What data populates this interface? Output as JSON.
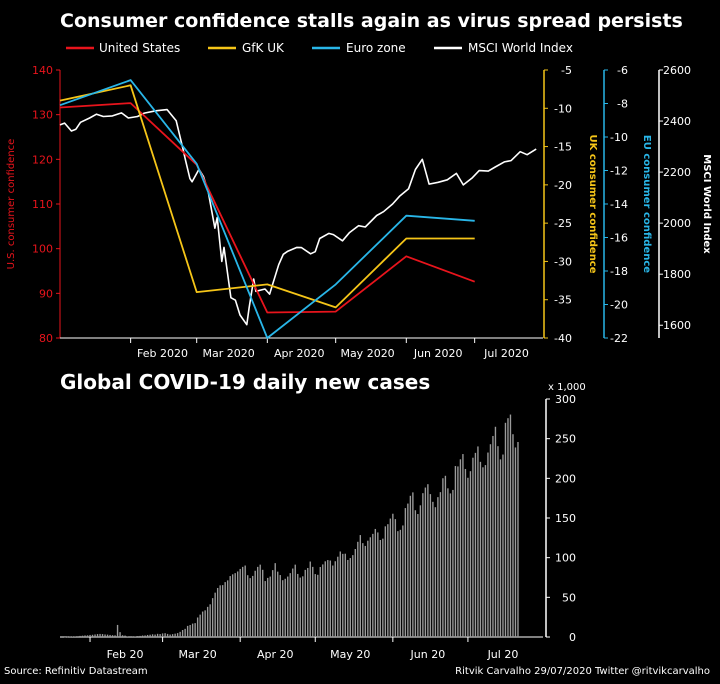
{
  "colors": {
    "us": "#e8141c",
    "uk": "#f5c518",
    "ez": "#29b6e8",
    "msci": "#ffffff",
    "bars": "#9a9a9a",
    "axis": "#ffffff"
  },
  "source_text": "Source: Refinitiv Datastream",
  "credit_text": "Ritvik Carvalho 29/07/2020 Twitter @ritvikcarvalho",
  "chart_data": [
    {
      "type": "line",
      "title": "Consumer confidence stalls again as virus spread persists",
      "x_tick_labels": [
        "Feb 2020",
        "Mar 2020",
        "Apr 2020",
        "May 2020",
        "Jun 2020",
        "Jul 2020"
      ],
      "legend": [
        "United States",
        "GfK UK",
        "Euro zone",
        "MSCI World Index"
      ],
      "legend_placement": "top",
      "axes": {
        "us": {
          "label": "U.S. consumer confidence",
          "range": [
            80,
            140
          ],
          "ticks": [
            "80",
            "90",
            "100",
            "110",
            "120",
            "130",
            "140"
          ],
          "color": "#e8141c"
        },
        "uk": {
          "label": "UK consumer confidence",
          "range": [
            -40,
            -5
          ],
          "ticks": [
            "-40",
            "-35",
            "-30",
            "-25",
            "-20",
            "-15",
            "-10",
            "-5"
          ],
          "color": "#f5c518"
        },
        "ez": {
          "label": "EU consumer confidence",
          "range": [
            -22,
            -6
          ],
          "ticks": [
            "-22",
            "-20",
            "-18",
            "-16",
            "-14",
            "-12",
            "-10",
            "-8",
            "-6"
          ],
          "color": "#29b6e8"
        },
        "msci": {
          "label": "MSCI World Index",
          "range": [
            1550,
            2600
          ],
          "ticks": [
            "1600",
            "1800",
            "2000",
            "2200",
            "2400",
            "2600"
          ],
          "color": "#ffffff"
        }
      },
      "series": [
        {
          "name": "United States",
          "axis": "us",
          "x": [
            "2020-01-01",
            "2020-02-01",
            "2020-03-01",
            "2020-04-01",
            "2020-05-01",
            "2020-06-01",
            "2020-07-01"
          ],
          "y": [
            131.6,
            132.6,
            118.8,
            85.7,
            85.9,
            98.3,
            92.6
          ]
        },
        {
          "name": "GfK UK",
          "axis": "uk",
          "x": [
            "2020-01-01",
            "2020-02-01",
            "2020-03-01",
            "2020-04-01",
            "2020-05-01",
            "2020-06-01",
            "2020-07-01"
          ],
          "y": [
            -9,
            -7,
            -34,
            -33,
            -36,
            -27,
            -27
          ]
        },
        {
          "name": "Euro zone",
          "axis": "ez",
          "x": [
            "2020-01-01",
            "2020-02-01",
            "2020-03-01",
            "2020-04-01",
            "2020-05-01",
            "2020-06-01",
            "2020-07-01"
          ],
          "y": [
            -8.1,
            -6.6,
            -11.6,
            -22.0,
            -18.8,
            -14.7,
            -15.0
          ]
        },
        {
          "name": "MSCI World Index",
          "axis": "msci",
          "x": [
            "2020-01-01",
            "2020-01-03",
            "2020-01-06",
            "2020-01-08",
            "2020-01-10",
            "2020-01-14",
            "2020-01-17",
            "2020-01-20",
            "2020-01-24",
            "2020-01-28",
            "2020-01-31",
            "2020-02-04",
            "2020-02-07",
            "2020-02-12",
            "2020-02-17",
            "2020-02-21",
            "2020-02-24",
            "2020-02-25",
            "2020-02-27",
            "2020-02-28",
            "2020-03-02",
            "2020-03-04",
            "2020-03-06",
            "2020-03-09",
            "2020-03-10",
            "2020-03-12",
            "2020-03-13",
            "2020-03-16",
            "2020-03-18",
            "2020-03-20",
            "2020-03-23",
            "2020-03-24",
            "2020-03-26",
            "2020-03-27",
            "2020-03-31",
            "2020-04-02",
            "2020-04-06",
            "2020-04-08",
            "2020-04-10",
            "2020-04-14",
            "2020-04-16",
            "2020-04-20",
            "2020-04-22",
            "2020-04-24",
            "2020-04-28",
            "2020-04-30",
            "2020-05-04",
            "2020-05-07",
            "2020-05-11",
            "2020-05-14",
            "2020-05-19",
            "2020-05-22",
            "2020-05-26",
            "2020-05-29",
            "2020-06-02",
            "2020-06-05",
            "2020-06-08",
            "2020-06-11",
            "2020-06-15",
            "2020-06-19",
            "2020-06-23",
            "2020-06-26",
            "2020-06-30",
            "2020-07-03",
            "2020-07-07",
            "2020-07-10",
            "2020-07-14",
            "2020-07-17",
            "2020-07-21",
            "2020-07-24",
            "2020-07-28"
          ],
          "y": [
            2385,
            2392,
            2361,
            2368,
            2395,
            2412,
            2427,
            2418,
            2420,
            2432,
            2412,
            2418,
            2431,
            2440,
            2445,
            2401,
            2290,
            2250,
            2175,
            2162,
            2211,
            2182,
            2125,
            1980,
            2022,
            1850,
            1905,
            1708,
            1698,
            1640,
            1602,
            1668,
            1781,
            1733,
            1742,
            1722,
            1837,
            1878,
            1890,
            1905,
            1904,
            1880,
            1888,
            1940,
            1960,
            1955,
            1931,
            1962,
            1990,
            1985,
            2030,
            2045,
            2075,
            2105,
            2135,
            2210,
            2250,
            2153,
            2160,
            2170,
            2195,
            2150,
            2178,
            2206,
            2204,
            2220,
            2240,
            2245,
            2280,
            2268,
            2290
          ]
        }
      ]
    },
    {
      "type": "bar",
      "title": "Global COVID-19 daily new cases",
      "unit_label": "x 1,000",
      "x_tick_labels": [
        "Feb 20",
        "Mar 20",
        "Apr 20",
        "May 20",
        "Jun 20",
        "Jul 20"
      ],
      "ylim": [
        0,
        300
      ],
      "y_ticks": [
        "0",
        "50",
        "100",
        "150",
        "200",
        "250",
        "300"
      ],
      "start_date": "2020-01-22",
      "values": [
        0.1,
        0.3,
        0.5,
        0.6,
        0.7,
        1.0,
        1.4,
        1.7,
        2.0,
        2.1,
        2.6,
        2.8,
        3.2,
        3.7,
        3.9,
        3.7,
        3.2,
        3.0,
        2.6,
        2.3,
        2.1,
        15.2,
        6.1,
        2.2,
        1.8,
        0.8,
        1.0,
        0.9,
        0.7,
        1.2,
        1.4,
        1.9,
        2.0,
        2.6,
        2.9,
        3.4,
        3.1,
        4.0,
        3.7,
        4.5,
        4.8,
        3.9,
        3.1,
        3.6,
        4.2,
        4.9,
        6.5,
        8.8,
        10.3,
        14.0,
        15.1,
        16.9,
        17.5,
        24.6,
        28.2,
        32.1,
        33.6,
        38.0,
        41.2,
        49.0,
        55.9,
        61.8,
        65.1,
        65.4,
        69.2,
        71.4,
        76.8,
        79.0,
        80.5,
        82.6,
        85.8,
        88.4,
        90.1,
        77.9,
        74.2,
        77.0,
        83.5,
        88.4,
        91.2,
        84.7,
        70.5,
        74.5,
        76.2,
        84.3,
        93.1,
        82.4,
        78.1,
        71.6,
        73.4,
        76.2,
        80.5,
        86.3,
        91.2,
        79.5,
        74.9,
        76.5,
        84.6,
        87.0,
        95.1,
        88.4,
        79.3,
        78.4,
        88.2,
        91.5,
        95.4,
        97.0,
        96.4,
        90.1,
        95.5,
        101.2,
        107.8,
        104.8,
        105.0,
        97.1,
        99.5,
        103.2,
        110.9,
        120.0,
        128.5,
        118.3,
        114.8,
        121.4,
        125.7,
        130.0,
        136.2,
        131.8,
        122.3,
        124.0,
        139.5,
        142.2,
        149.3,
        155.4,
        148.6,
        133.4,
        135.1,
        140.6,
        162.5,
        168.2,
        178.0,
        182.3,
        159.8,
        155.0,
        166.0,
        181.3,
        188.4,
        192.6,
        180.1,
        170.4,
        163.6,
        176.3,
        182.6,
        200.1,
        203.2,
        187.4,
        181.0,
        185.4,
        215.5,
        215.0,
        224.0,
        230.6,
        211.8,
        200.7,
        209.0,
        226.0,
        232.1,
        240.2,
        220.8,
        213.9,
        216.7,
        232.5,
        243.0,
        253.4,
        265.0,
        240.5,
        223.9,
        230.0,
        270.0,
        275.8,
        280.4,
        255.6,
        238.9,
        245.8
      ]
    }
  ]
}
